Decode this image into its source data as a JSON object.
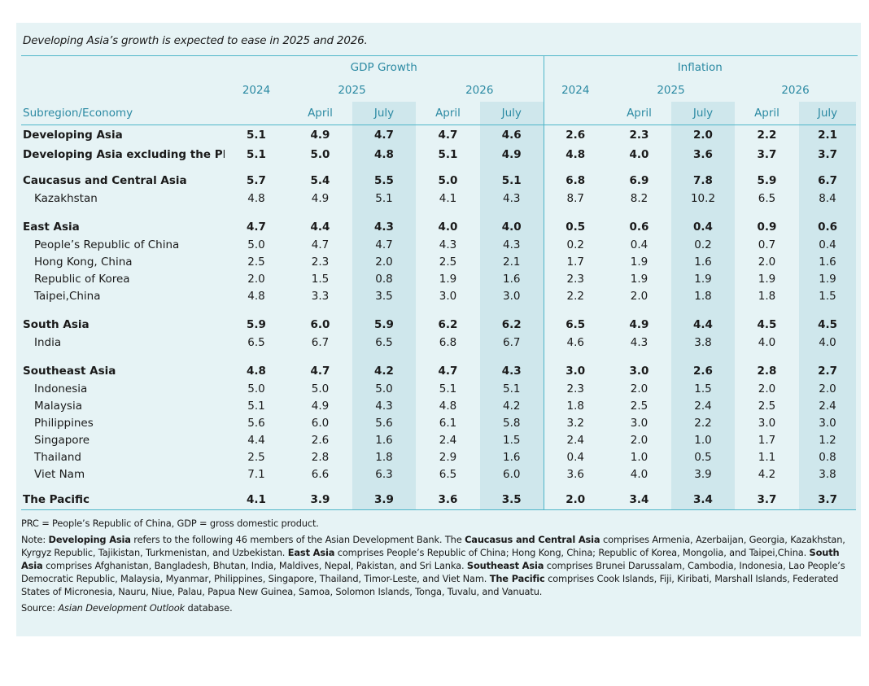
{
  "title": "Developing Asia’s growth is expected to ease in 2025 and 2026.",
  "headers": {
    "gdp_group": "GDP Growth",
    "inflation_group": "Inflation",
    "year_2024": "2024",
    "year_2025": "2025",
    "year_2026": "2026",
    "april": "April",
    "july": "July",
    "row_label": "Subregion/Economy"
  },
  "rows": [
    {
      "label": "Developing Asia",
      "bold": true,
      "v": [
        "5.1",
        "4.9",
        "4.7",
        "4.7",
        "4.6",
        "2.6",
        "2.3",
        "2.0",
        "2.2",
        "2.1"
      ]
    },
    {
      "label": "Developing Asia excluding the PRC",
      "bold": true,
      "v": [
        "5.1",
        "5.0",
        "4.8",
        "5.1",
        "4.9",
        "4.8",
        "4.0",
        "3.6",
        "3.7",
        "3.7"
      ]
    },
    {
      "label": "Caucasus and Central Asia",
      "bold": true,
      "v": [
        "5.7",
        "5.4",
        "5.5",
        "5.0",
        "5.1",
        "6.8",
        "6.9",
        "7.8",
        "5.9",
        "6.7"
      ]
    },
    {
      "label": "Kazakhstan",
      "bold": false,
      "v": [
        "4.8",
        "4.9",
        "5.1",
        "4.1",
        "4.3",
        "8.7",
        "8.2",
        "10.2",
        "6.5",
        "8.4"
      ]
    },
    {
      "label": "East Asia",
      "bold": true,
      "v": [
        "4.7",
        "4.4",
        "4.3",
        "4.0",
        "4.0",
        "0.5",
        "0.6",
        "0.4",
        "0.9",
        "0.6"
      ]
    },
    {
      "label": "People’s Republic of China",
      "bold": false,
      "v": [
        "5.0",
        "4.7",
        "4.7",
        "4.3",
        "4.3",
        "0.2",
        "0.4",
        "0.2",
        "0.7",
        "0.4"
      ]
    },
    {
      "label": "Hong Kong, China",
      "bold": false,
      "v": [
        "2.5",
        "2.3",
        "2.0",
        "2.5",
        "2.1",
        "1.7",
        "1.9",
        "1.6",
        "2.0",
        "1.6"
      ]
    },
    {
      "label": "Republic of Korea",
      "bold": false,
      "v": [
        "2.0",
        "1.5",
        "0.8",
        "1.9",
        "1.6",
        "2.3",
        "1.9",
        "1.9",
        "1.9",
        "1.9"
      ]
    },
    {
      "label": "Taipei,China",
      "bold": false,
      "v": [
        "4.8",
        "3.3",
        "3.5",
        "3.0",
        "3.0",
        "2.2",
        "2.0",
        "1.8",
        "1.8",
        "1.5"
      ]
    },
    {
      "label": "South Asia",
      "bold": true,
      "v": [
        "5.9",
        "6.0",
        "5.9",
        "6.2",
        "6.2",
        "6.5",
        "4.9",
        "4.4",
        "4.5",
        "4.5"
      ]
    },
    {
      "label": "India",
      "bold": false,
      "v": [
        "6.5",
        "6.7",
        "6.5",
        "6.8",
        "6.7",
        "4.6",
        "4.3",
        "3.8",
        "4.0",
        "4.0"
      ]
    },
    {
      "label": "Southeast Asia",
      "bold": true,
      "v": [
        "4.8",
        "4.7",
        "4.2",
        "4.7",
        "4.3",
        "3.0",
        "3.0",
        "2.6",
        "2.8",
        "2.7"
      ]
    },
    {
      "label": "Indonesia",
      "bold": false,
      "v": [
        "5.0",
        "5.0",
        "5.0",
        "5.1",
        "5.1",
        "2.3",
        "2.0",
        "1.5",
        "2.0",
        "2.0"
      ]
    },
    {
      "label": "Malaysia",
      "bold": false,
      "v": [
        "5.1",
        "4.9",
        "4.3",
        "4.8",
        "4.2",
        "1.8",
        "2.5",
        "2.4",
        "2.5",
        "2.4"
      ]
    },
    {
      "label": "Philippines",
      "bold": false,
      "v": [
        "5.6",
        "6.0",
        "5.6",
        "6.1",
        "5.8",
        "3.2",
        "3.0",
        "2.2",
        "3.0",
        "3.0"
      ]
    },
    {
      "label": "Singapore",
      "bold": false,
      "v": [
        "4.4",
        "2.6",
        "1.6",
        "2.4",
        "1.5",
        "2.4",
        "2.0",
        "1.0",
        "1.7",
        "1.2"
      ]
    },
    {
      "label": "Thailand",
      "bold": false,
      "v": [
        "2.5",
        "2.8",
        "1.8",
        "2.9",
        "1.6",
        "0.4",
        "1.0",
        "0.5",
        "1.1",
        "0.8"
      ]
    },
    {
      "label": "Viet Nam",
      "bold": false,
      "v": [
        "7.1",
        "6.6",
        "6.3",
        "6.5",
        "6.0",
        "3.6",
        "4.0",
        "3.9",
        "4.2",
        "3.8"
      ]
    },
    {
      "label": "The Pacific",
      "bold": true,
      "v": [
        "4.1",
        "3.9",
        "3.9",
        "3.6",
        "3.5",
        "2.0",
        "3.4",
        "3.4",
        "3.7",
        "3.7"
      ]
    }
  ],
  "notes": {
    "abbrev": "PRC = People’s Republic of China, GDP = gross domestic product.",
    "note_prefix": "Note: ",
    "n1_bold": "Developing Asia",
    "n1": " refers to the following 46 members of the Asian Development Bank. The ",
    "n2_bold": "Caucasus and Central Asia",
    "n2": " comprises Armenia, Azerbaijan, Georgia, Kazakhstan, Kyrgyz Republic, Tajikistan, Turkmenistan, and Uzbekistan. ",
    "n3_bold": "East Asia",
    "n3": " comprises People’s Republic of China; Hong Kong, China; Republic of Korea, Mongolia, and Taipei,China. ",
    "n4_bold": "South Asia",
    "n4": " comprises Afghanistan, Bangladesh, Bhutan, India, Maldives, Nepal, Pakistan, and Sri Lanka. ",
    "n5_bold": "Southeast Asia",
    "n5": " comprises Brunei Darussalam, Cambodia, Indonesia, Lao People’s Democratic Republic, Malaysia, Myanmar, Philippines, Singapore, Thailand, Timor-Leste, and Viet Nam. ",
    "n6_bold": "The Pacific",
    "n6": " comprises Cook Islands, Fiji, Kiribati, Marshall Islands, Federated States of Micronesia, Nauru, Niue, Palau, Papua New Guinea, Samoa, Solomon Islands, Tonga, Tuvalu, and Vanuatu.",
    "source_prefix": "Source: ",
    "source_italic": "Asian Development Outlook",
    "source_suffix": " database."
  }
}
